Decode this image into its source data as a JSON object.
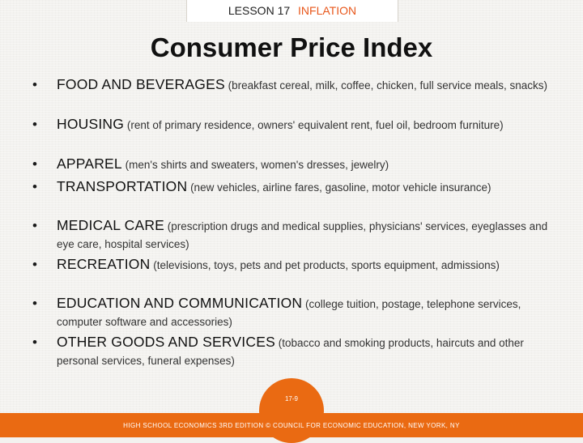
{
  "header": {
    "lesson": "LESSON 17",
    "topic": "INFLATION"
  },
  "title": "Consumer Price Index",
  "items": [
    {
      "bullet": "•",
      "category": "FOOD AND BEVERAGES",
      "description": "(breakfast cereal, milk, coffee, chicken, full service meals, snacks)"
    },
    {
      "bullet": "•",
      "category": "HOUSING",
      "description": "(rent of primary residence, owners' equivalent rent, fuel oil, bedroom furniture)"
    },
    {
      "bullet": "•",
      "category": "APPAREL",
      "description": "(men's shirts and sweaters, women's dresses, jewelry)"
    },
    {
      "bullet": "•",
      "category": "TRANSPORTATION",
      "description": "(new vehicles, airline fares, gasoline, motor vehicle insurance)"
    },
    {
      "bullet": "•",
      "category": "MEDICAL CARE",
      "description": "(prescription drugs and medical supplies, physicians' services, eyeglasses and eye care, hospital services)"
    },
    {
      "bullet": "•",
      "category": "RECREATION",
      "description": "(televisions, toys, pets and pet products, sports equipment, admissions)"
    },
    {
      "bullet": "•",
      "category": "EDUCATION AND COMMUNICATION",
      "description": "(college tuition, postage, telephone services, computer software and accessories)"
    },
    {
      "bullet": "•",
      "category": "OTHER GOODS AND SERVICES",
      "description": "(tobacco and smoking products, haircuts and other personal services, funeral expenses)"
    }
  ],
  "footer": {
    "page": "17-9",
    "credit": "HIGH SCHOOL ECONOMICS 3RD EDITION © COUNCIL FOR ECONOMIC EDUCATION, NEW YORK, NY"
  },
  "colors": {
    "accent": "#ea6a12",
    "topic": "#e8571b",
    "background": "#f3f2ef"
  }
}
